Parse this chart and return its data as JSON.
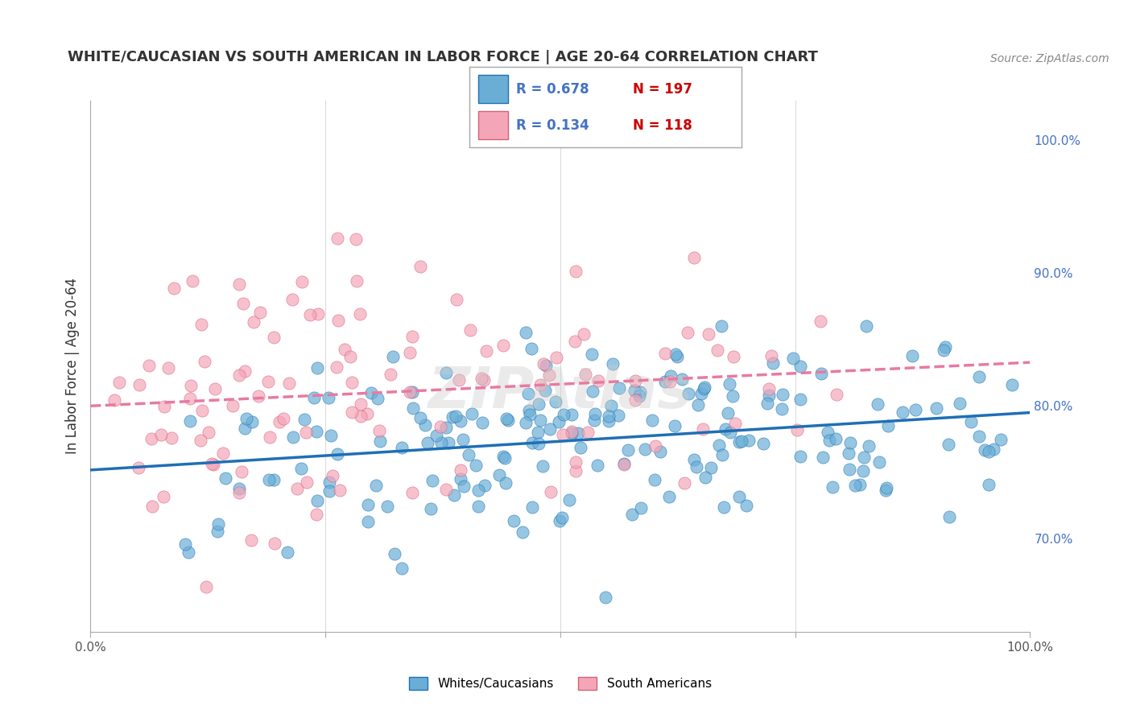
{
  "title": "WHITE/CAUCASIAN VS SOUTH AMERICAN IN LABOR FORCE | AGE 20-64 CORRELATION CHART",
  "source": "Source: ZipAtlas.com",
  "ylabel": "In Labor Force | Age 20-64",
  "legend_label1": "Whites/Caucasians",
  "legend_label2": "South Americans",
  "r1": 0.678,
  "n1": 197,
  "r2": 0.134,
  "n2": 118,
  "blue_color": "#6aaed6",
  "pink_color": "#f4a6b8",
  "blue_line_color": "#1f6fb5",
  "pink_line_color": "#e87aa0",
  "blue_dark": "#2171b5",
  "pink_dark": "#d6607a",
  "label_color": "#4472c4",
  "n_color": "#cc0000",
  "right_yticks": [
    70.0,
    80.0,
    90.0,
    100.0
  ],
  "xmin": 0.0,
  "xmax": 100.0,
  "ymin": 63.0,
  "ymax": 103.0,
  "blue_seed": 42,
  "pink_seed": 99,
  "watermark": "ZIPAtlas",
  "background_color": "#ffffff",
  "grid_color": "#cccccc"
}
